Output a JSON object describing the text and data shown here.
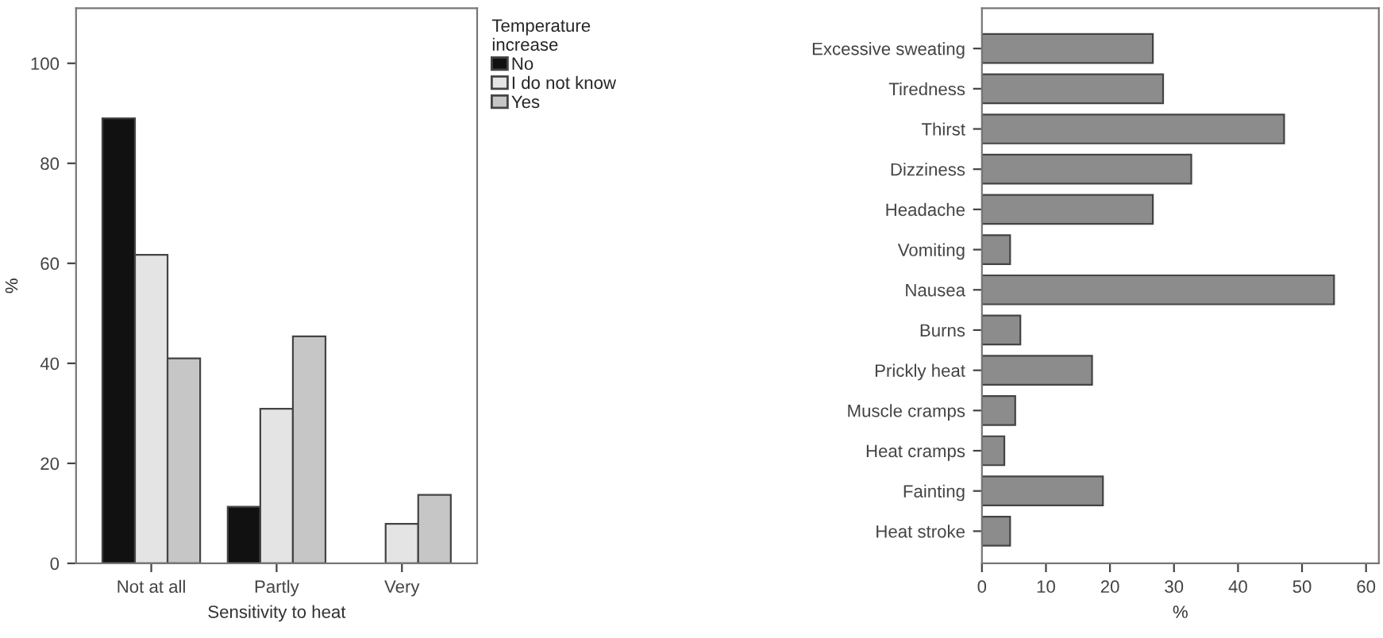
{
  "chart_data": [
    {
      "type": "bar",
      "xlabel": "Sensitivity to heat",
      "ylabel": "%",
      "legend_title": "Temperature\nincrease",
      "categories": [
        "Not at all",
        "Partly",
        "Very"
      ],
      "series": [
        {
          "name": "No",
          "color": "#111111",
          "values": [
            89,
            11.3,
            null
          ]
        },
        {
          "name": "I do not know",
          "color": "#e4e4e4",
          "values": [
            61.7,
            30.9,
            7.9
          ]
        },
        {
          "name": "Yes",
          "color": "#c6c6c6",
          "values": [
            41,
            45.4,
            13.7
          ]
        }
      ],
      "ylim": [
        0,
        111
      ],
      "yticks": [
        0,
        20,
        40,
        60,
        80,
        100
      ],
      "legend": "right",
      "grid": false
    },
    {
      "type": "bar",
      "orientation": "horizontal",
      "xlabel": "%",
      "categories": [
        "Excessive sweating",
        "Tiredness",
        "Thirst",
        "Dizziness",
        "Headache",
        "Vomiting",
        "Nausea",
        "Burns",
        "Prickly heat",
        "Muscle cramps",
        "Heat cramps",
        "Fainting",
        "Heat stroke"
      ],
      "values": [
        26.7,
        28.3,
        47.2,
        32.7,
        26.7,
        4.4,
        55,
        6.0,
        17.2,
        5.2,
        3.5,
        18.9,
        4.4
      ],
      "color": "#8c8c8c",
      "xlim": [
        0,
        62
      ],
      "xticks": [
        0,
        10,
        20,
        30,
        40,
        50,
        60
      ],
      "grid": false
    }
  ]
}
